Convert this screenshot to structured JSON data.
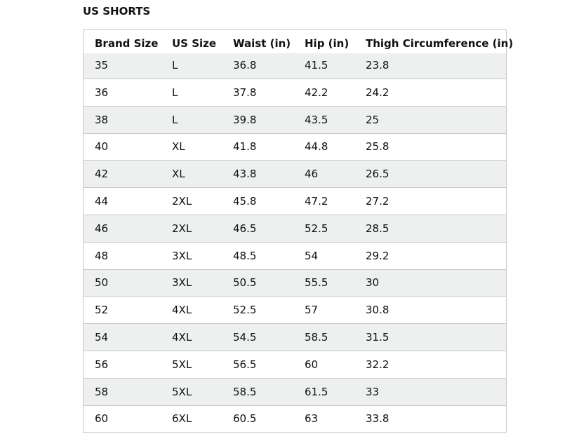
{
  "header": {
    "title": "US SHORTS"
  },
  "table": {
    "columns": [
      "Brand Size",
      "US Size",
      "Waist (in)",
      "Hip (in)",
      "Thigh Circumference (in)"
    ],
    "rows": [
      [
        "35",
        "L",
        "36.8",
        "41.5",
        "23.8"
      ],
      [
        "36",
        "L",
        "37.8",
        "42.2",
        "24.2"
      ],
      [
        "38",
        "L",
        "39.8",
        "43.5",
        "25"
      ],
      [
        "40",
        "XL",
        "41.8",
        "44.8",
        "25.8"
      ],
      [
        "42",
        "XL",
        "43.8",
        "46",
        "26.5"
      ],
      [
        "44",
        "2XL",
        "45.8",
        "47.2",
        "27.2"
      ],
      [
        "46",
        "2XL",
        "46.5",
        "52.5",
        "28.5"
      ],
      [
        "48",
        "3XL",
        "48.5",
        "54",
        "29.2"
      ],
      [
        "50",
        "3XL",
        "50.5",
        "55.5",
        "30"
      ],
      [
        "52",
        "4XL",
        "52.5",
        "57",
        "30.8"
      ],
      [
        "54",
        "4XL",
        "54.5",
        "58.5",
        "31.5"
      ],
      [
        "56",
        "5XL",
        "56.5",
        "60",
        "32.2"
      ],
      [
        "58",
        "5XL",
        "58.5",
        "61.5",
        "33"
      ],
      [
        "60",
        "6XL",
        "60.5",
        "63",
        "33.8"
      ]
    ]
  }
}
